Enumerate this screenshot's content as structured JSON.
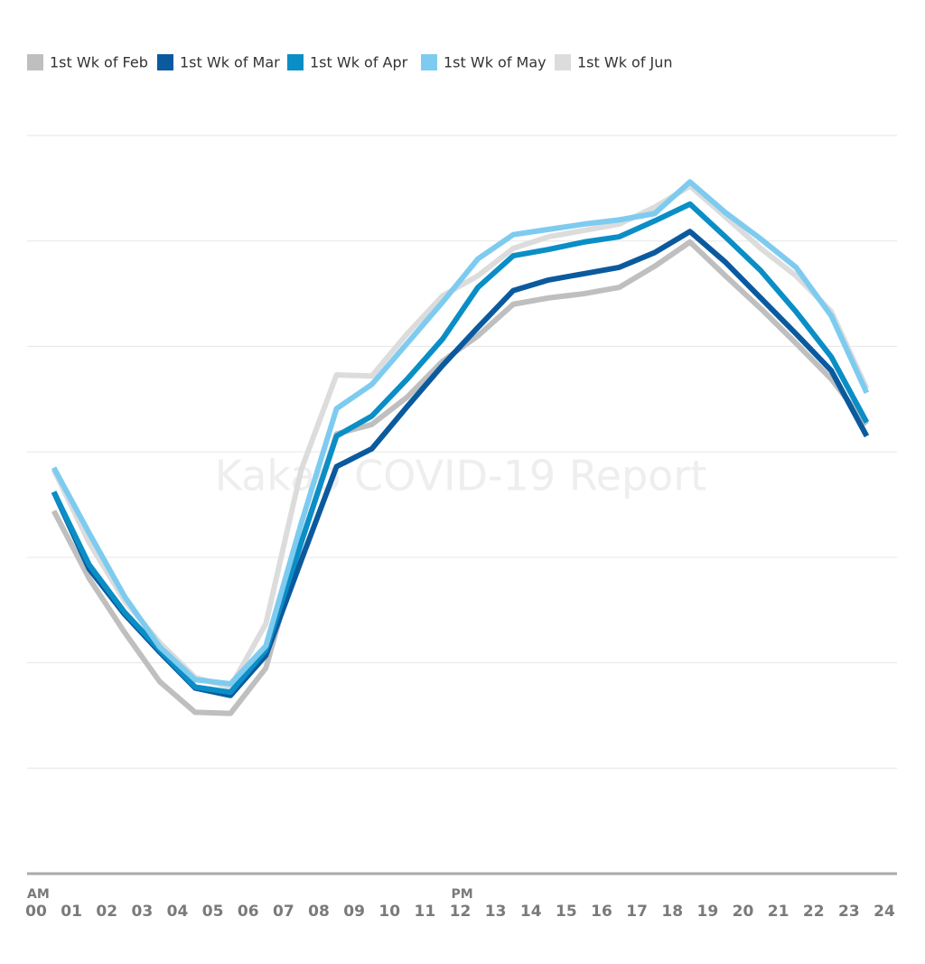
{
  "chart_data": {
    "type": "line",
    "watermark": "Kakao COVID-19 Report",
    "annotations": [
      {
        "text": "AM",
        "x": 0
      },
      {
        "text": "PM",
        "x": 12
      }
    ],
    "xlim": [
      0,
      24
    ],
    "xticks": [
      {
        "value": 0,
        "label": "00"
      },
      {
        "value": 1,
        "label": "01"
      },
      {
        "value": 2,
        "label": "02"
      },
      {
        "value": 3,
        "label": "03"
      },
      {
        "value": 4,
        "label": "04"
      },
      {
        "value": 5,
        "label": "05"
      },
      {
        "value": 6,
        "label": "06"
      },
      {
        "value": 7,
        "label": "07"
      },
      {
        "value": 8,
        "label": "08"
      },
      {
        "value": 9,
        "label": "09"
      },
      10,
      11,
      12,
      13,
      14,
      15,
      16,
      17,
      18,
      19,
      20,
      21,
      22,
      23,
      24
    ],
    "x": [
      0.5,
      1.5,
      2.5,
      3.5,
      4.5,
      5.5,
      6.5,
      7.5,
      8.5,
      9.5,
      10.5,
      11.5,
      12.5,
      13.5,
      14.5,
      15.5,
      16.5,
      17.5,
      18.5,
      19.5,
      20.5,
      21.5,
      22.5,
      23.5
    ],
    "ylim": [
      0,
      7
    ],
    "yticks": [
      1,
      2,
      3,
      4,
      5,
      6,
      7
    ],
    "grid": true,
    "series": [
      {
        "name": "1st Wk of Feb",
        "color": "#bfbfbf",
        "values": [
          3.44,
          2.8,
          2.29,
          1.82,
          1.53,
          1.52,
          1.95,
          3.14,
          4.17,
          4.26,
          4.52,
          4.86,
          5.1,
          5.4,
          5.46,
          5.5,
          5.56,
          5.76,
          5.99,
          5.67,
          5.36,
          5.03,
          4.69,
          4.26
        ]
      },
      {
        "name": "1st Wk of Mar",
        "color": "#0b5a9e",
        "values": [
          3.62,
          2.89,
          2.46,
          2.1,
          1.76,
          1.69,
          2.07,
          2.97,
          3.86,
          4.03,
          4.43,
          4.82,
          5.18,
          5.53,
          5.63,
          5.69,
          5.75,
          5.89,
          6.09,
          5.8,
          5.46,
          5.12,
          4.77,
          4.15
        ]
      },
      {
        "name": "1st Wk of Apr",
        "color": "#0a8ec6",
        "values": [
          3.62,
          2.93,
          2.48,
          2.12,
          1.77,
          1.72,
          2.12,
          3.14,
          4.15,
          4.34,
          4.69,
          5.07,
          5.56,
          5.86,
          5.92,
          5.99,
          6.04,
          6.19,
          6.35,
          6.04,
          5.72,
          5.33,
          4.9,
          4.28
        ]
      },
      {
        "name": "1st Wk of May",
        "color": "#7ecbf0",
        "values": [
          3.85,
          3.23,
          2.63,
          2.15,
          1.84,
          1.8,
          2.16,
          3.32,
          4.41,
          4.64,
          5.03,
          5.42,
          5.83,
          6.06,
          6.11,
          6.16,
          6.2,
          6.26,
          6.56,
          6.27,
          6.02,
          5.75,
          5.29,
          4.56
        ]
      },
      {
        "name": "1st Wk of Jun",
        "color": "#dcdcdc",
        "values": [
          3.83,
          3.14,
          2.59,
          2.19,
          1.86,
          1.77,
          2.37,
          3.83,
          4.73,
          4.72,
          5.12,
          5.48,
          5.67,
          5.93,
          6.04,
          6.1,
          6.16,
          6.32,
          6.52,
          6.23,
          5.93,
          5.67,
          5.33,
          4.6
        ]
      }
    ]
  }
}
